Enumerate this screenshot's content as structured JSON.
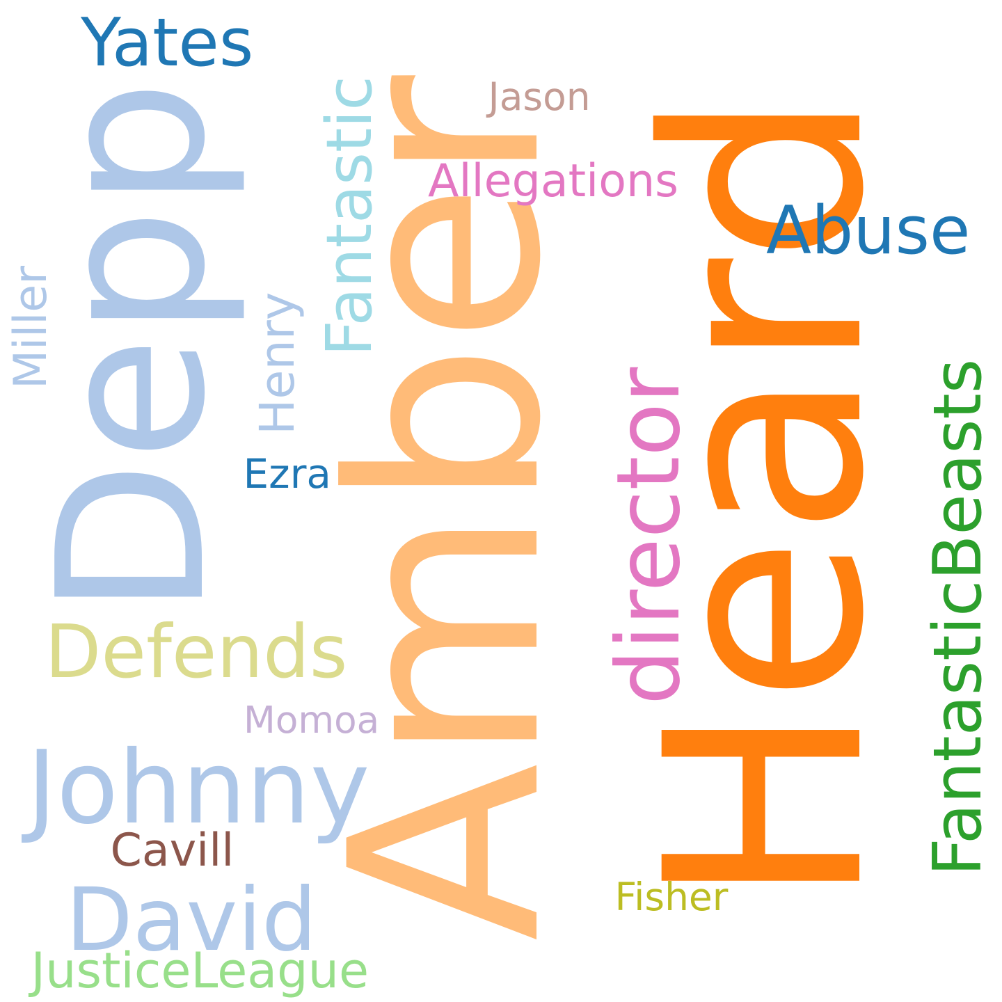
{
  "words": [
    {
      "text": "Heard",
      "color": "#ff7f0e",
      "rotated": true
    },
    {
      "text": "Amber",
      "color": "#ffbb78",
      "rotated": true
    },
    {
      "text": "Depp",
      "color": "#aec7e8",
      "rotated": true
    },
    {
      "text": "Yates",
      "color": "#1f77b4",
      "rotated": false
    },
    {
      "text": "Fantastic",
      "color": "#9edae5",
      "rotated": true
    },
    {
      "text": "Jason",
      "color": "#c49c94",
      "rotated": false
    },
    {
      "text": "Allegations",
      "color": "#e377c2",
      "rotated": false
    },
    {
      "text": "Abuse",
      "color": "#1f77b4",
      "rotated": false
    },
    {
      "text": "director",
      "color": "#e377c2",
      "rotated": true
    },
    {
      "text": "FantasticBeasts",
      "color": "#2ca02c",
      "rotated": true
    },
    {
      "text": "Miller",
      "color": "#aec7e8",
      "rotated": true
    },
    {
      "text": "Henry",
      "color": "#aec7e8",
      "rotated": true
    },
    {
      "text": "Ezra",
      "color": "#1f77b4",
      "rotated": false
    },
    {
      "text": "Defends",
      "color": "#dbdb8d",
      "rotated": false
    },
    {
      "text": "Momoa",
      "color": "#c5b0d5",
      "rotated": false
    },
    {
      "text": "Johnny",
      "color": "#aec7e8",
      "rotated": false
    },
    {
      "text": "Cavill",
      "color": "#8c564b",
      "rotated": false
    },
    {
      "text": "David",
      "color": "#aec7e8",
      "rotated": false
    },
    {
      "text": "Fisher",
      "color": "#bcbd22",
      "rotated": false
    },
    {
      "text": "JusticeLeague",
      "color": "#98df8a",
      "rotated": false
    }
  ]
}
